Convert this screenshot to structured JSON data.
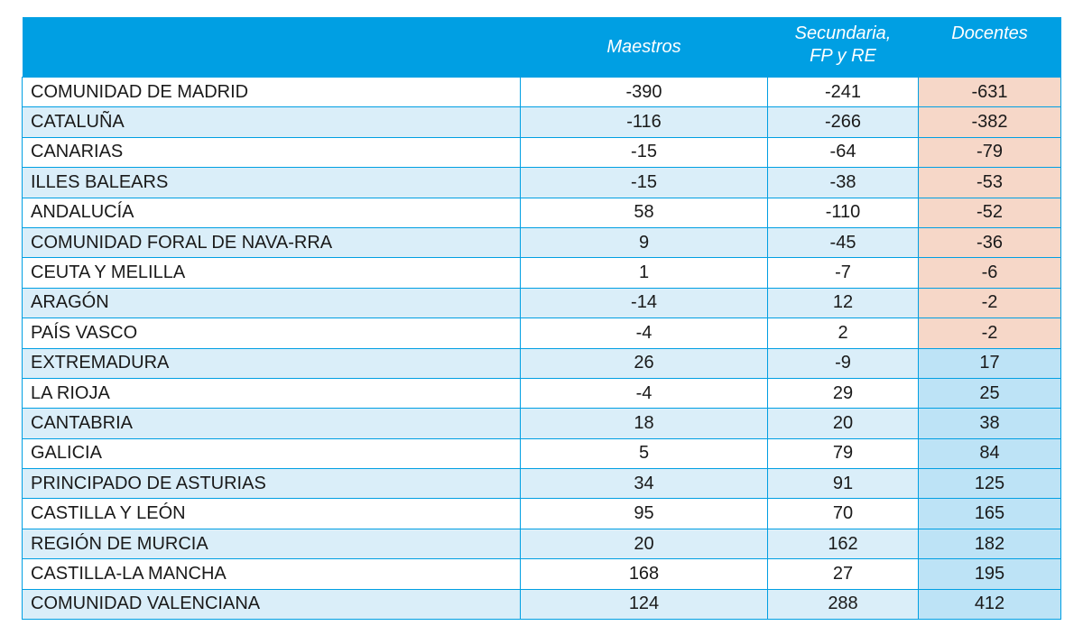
{
  "chart_data": {
    "type": "table",
    "columns": [
      "",
      "Maestros",
      "Secundaria, FP y RE",
      "Docentes"
    ],
    "header": {
      "maestros": "Maestros",
      "secundaria_line1": "Secundaria,",
      "secundaria_line2": "FP y RE",
      "docentes": "Docentes"
    },
    "rows": [
      {
        "region": "COMUNIDAD DE MADRID",
        "maestros": "-390",
        "secundaria": "-241",
        "docentes": "-631"
      },
      {
        "region": "CATALUÑA",
        "maestros": "-116",
        "secundaria": "-266",
        "docentes": "-382"
      },
      {
        "region": "CANARIAS",
        "maestros": "-15",
        "secundaria": "-64",
        "docentes": "-79"
      },
      {
        "region": "ILLES BALEARS",
        "maestros": "-15",
        "secundaria": "-38",
        "docentes": "-53"
      },
      {
        "region": "ANDALUCÍA",
        "maestros": "58",
        "secundaria": "-110",
        "docentes": "-52"
      },
      {
        "region": "COMUNIDAD FORAL DE NAVA-RRA",
        "maestros": "9",
        "secundaria": "-45",
        "docentes": "-36"
      },
      {
        "region": "CEUTA Y MELILLA",
        "maestros": "1",
        "secundaria": "-7",
        "docentes": "-6"
      },
      {
        "region": "ARAGÓN",
        "maestros": "-14",
        "secundaria": "12",
        "docentes": "-2"
      },
      {
        "region": "PAÍS VASCO",
        "maestros": "-4",
        "secundaria": "2",
        "docentes": "-2"
      },
      {
        "region": "EXTREMADURA",
        "maestros": "26",
        "secundaria": "-9",
        "docentes": "17"
      },
      {
        "region": "LA RIOJA",
        "maestros": "-4",
        "secundaria": "29",
        "docentes": "25"
      },
      {
        "region": "CANTABRIA",
        "maestros": "18",
        "secundaria": "20",
        "docentes": "38"
      },
      {
        "region": "GALICIA",
        "maestros": "5",
        "secundaria": "79",
        "docentes": "84"
      },
      {
        "region": "PRINCIPADO DE ASTURIAS",
        "maestros": "34",
        "secundaria": "91",
        "docentes": "125"
      },
      {
        "region": "CASTILLA Y LEÓN",
        "maestros": "95",
        "secundaria": "70",
        "docentes": "165"
      },
      {
        "region": "REGIÓN DE MURCIA",
        "maestros": "20",
        "secundaria": "162",
        "docentes": "182"
      },
      {
        "region": "CASTILLA-LA MANCHA",
        "maestros": "168",
        "secundaria": "27",
        "docentes": "195"
      },
      {
        "region": "COMUNIDAD VALENCIANA",
        "maestros": "124",
        "secundaria": "288",
        "docentes": "412"
      }
    ]
  },
  "colors": {
    "header_bg": "#009fe3",
    "row_alt_bg": "#daeef9",
    "negative_bg": "#f6d7c8",
    "positive_bg": "#bde3f6"
  }
}
